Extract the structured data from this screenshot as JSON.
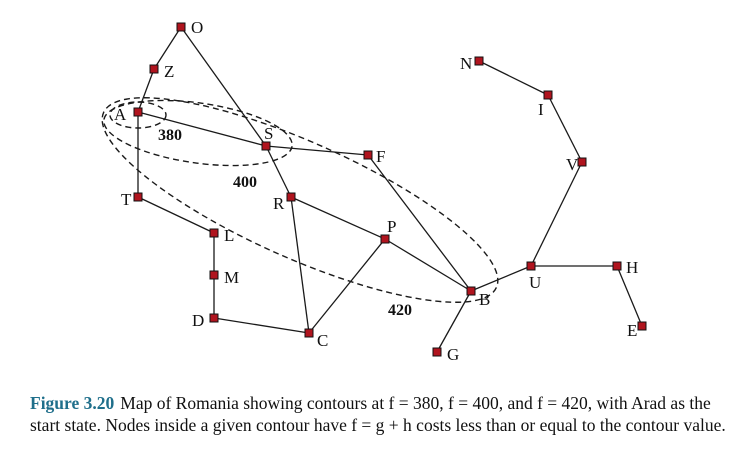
{
  "nodes": [
    {
      "id": "O",
      "label": "O"
    },
    {
      "id": "Z",
      "label": "Z"
    },
    {
      "id": "A",
      "label": "A"
    },
    {
      "id": "S",
      "label": "S"
    },
    {
      "id": "T",
      "label": "T"
    },
    {
      "id": "F",
      "label": "F"
    },
    {
      "id": "R",
      "label": "R"
    },
    {
      "id": "L",
      "label": "L"
    },
    {
      "id": "M",
      "label": "M"
    },
    {
      "id": "D",
      "label": "D"
    },
    {
      "id": "C",
      "label": "C"
    },
    {
      "id": "P",
      "label": "P"
    },
    {
      "id": "B",
      "label": "B"
    },
    {
      "id": "G",
      "label": "G"
    },
    {
      "id": "U",
      "label": "U"
    },
    {
      "id": "H",
      "label": "H"
    },
    {
      "id": "E",
      "label": "E"
    },
    {
      "id": "V",
      "label": "V"
    },
    {
      "id": "I",
      "label": "I"
    },
    {
      "id": "N",
      "label": "N"
    }
  ],
  "edges": [
    [
      "O",
      "Z"
    ],
    [
      "Z",
      "A"
    ],
    [
      "O",
      "S"
    ],
    [
      "A",
      "S"
    ],
    [
      "A",
      "T"
    ],
    [
      "T",
      "L"
    ],
    [
      "L",
      "M"
    ],
    [
      "M",
      "D"
    ],
    [
      "D",
      "C"
    ],
    [
      "S",
      "F"
    ],
    [
      "S",
      "R"
    ],
    [
      "R",
      "C"
    ],
    [
      "R",
      "P"
    ],
    [
      "C",
      "P"
    ],
    [
      "P",
      "B"
    ],
    [
      "F",
      "B"
    ],
    [
      "B",
      "G"
    ],
    [
      "B",
      "U"
    ],
    [
      "U",
      "H"
    ],
    [
      "H",
      "E"
    ],
    [
      "U",
      "V"
    ],
    [
      "V",
      "I"
    ],
    [
      "I",
      "N"
    ]
  ],
  "contours": [
    {
      "value": "380"
    },
    {
      "value": "400"
    },
    {
      "value": "420"
    }
  ],
  "caption": {
    "figure_label": "Figure 3.20",
    "text": "Map of Romania showing contours at f = 380, f = 400, and f = 420, with Arad as the start state. Nodes inside a given contour have f = g + h costs less than or equal to the contour value."
  }
}
